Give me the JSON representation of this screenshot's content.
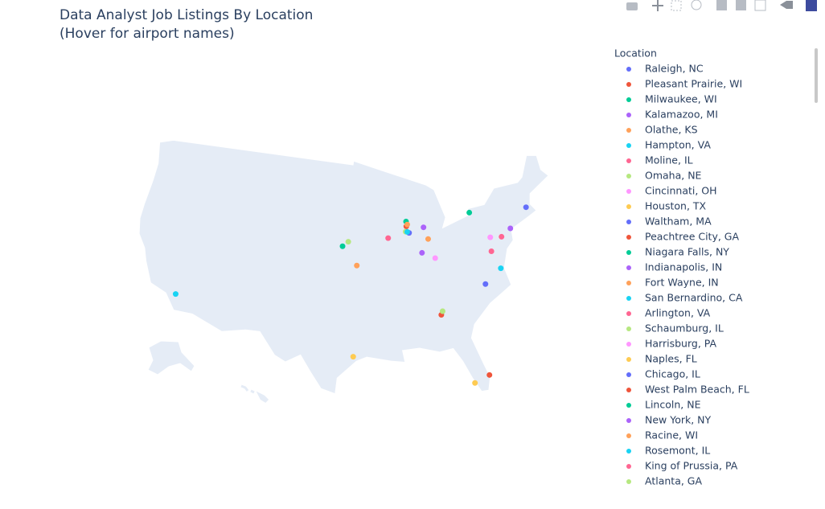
{
  "chart_data": {
    "type": "scatter_geo",
    "title": "Data Analyst Job Listings By Location",
    "subtitle": "(Hover for airport names)",
    "legend_title": "Location",
    "series": [
      {
        "name": "Raleigh, NC",
        "color": "#636efa",
        "lon": -78.64,
        "lat": 35.78
      },
      {
        "name": "Pleasant Prairie, WI",
        "color": "#EF553B",
        "lon": -87.93,
        "lat": 42.55
      },
      {
        "name": "Milwaukee, WI",
        "color": "#00cc96",
        "lon": -87.91,
        "lat": 43.04
      },
      {
        "name": "Kalamazoo, MI",
        "color": "#ab63fa",
        "lon": -85.59,
        "lat": 42.29
      },
      {
        "name": "Olathe, KS",
        "color": "#FFA15A",
        "lon": -94.82,
        "lat": 38.88
      },
      {
        "name": "Hampton, VA",
        "color": "#19d3f3",
        "lon": -76.35,
        "lat": 37.03
      },
      {
        "name": "Moline, IL",
        "color": "#FF6692",
        "lon": -90.52,
        "lat": 41.51
      },
      {
        "name": "Omaha, NE",
        "color": "#B6E880",
        "lon": -95.93,
        "lat": 41.26
      },
      {
        "name": "Cincinnati, OH",
        "color": "#FF97FF",
        "lon": -84.51,
        "lat": 39.1
      },
      {
        "name": "Houston, TX",
        "color": "#FECB52",
        "lon": -95.37,
        "lat": 29.76
      },
      {
        "name": "Waltham, MA",
        "color": "#636efa",
        "lon": -71.24,
        "lat": 42.38
      },
      {
        "name": "Peachtree City, GA",
        "color": "#EF553B",
        "lon": -84.6,
        "lat": 33.4
      },
      {
        "name": "Niagara Falls, NY",
        "color": "#00cc96",
        "lon": -79.05,
        "lat": 43.09
      },
      {
        "name": "Indianapolis, IN",
        "color": "#ab63fa",
        "lon": -86.16,
        "lat": 39.77
      },
      {
        "name": "Fort Wayne, IN",
        "color": "#FFA15A",
        "lon": -85.14,
        "lat": 41.08
      },
      {
        "name": "San Bernardino, CA",
        "color": "#19d3f3",
        "lon": -117.29,
        "lat": 34.11
      },
      {
        "name": "Arlington, VA",
        "color": "#FF6692",
        "lon": -77.1,
        "lat": 38.88
      },
      {
        "name": "Schaumburg, IL",
        "color": "#B6E880",
        "lon": -88.08,
        "lat": 42.03
      },
      {
        "name": "Harrisburg, PA",
        "color": "#FF97FF",
        "lon": -76.88,
        "lat": 40.27
      },
      {
        "name": "Naples, FL",
        "color": "#FECB52",
        "lon": -81.79,
        "lat": 26.14
      },
      {
        "name": "Chicago, IL",
        "color": "#636efa",
        "lon": -87.63,
        "lat": 41.88
      },
      {
        "name": "West Palm Beach, FL",
        "color": "#EF553B",
        "lon": -80.05,
        "lat": 26.71
      },
      {
        "name": "Lincoln, NE",
        "color": "#00cc96",
        "lon": -96.7,
        "lat": 40.81
      },
      {
        "name": "New York, NY",
        "color": "#ab63fa",
        "lon": -74.0,
        "lat": 40.71
      },
      {
        "name": "Racine, WI",
        "color": "#FFA15A",
        "lon": -87.78,
        "lat": 42.73
      },
      {
        "name": "Rosemont, IL",
        "color": "#19d3f3",
        "lon": -87.87,
        "lat": 41.99
      },
      {
        "name": "King of Prussia, PA",
        "color": "#FF6692",
        "lon": -75.4,
        "lat": 40.09
      },
      {
        "name": "Atlanta, GA",
        "color": "#B6E880",
        "lon": -84.39,
        "lat": 33.75
      }
    ]
  }
}
